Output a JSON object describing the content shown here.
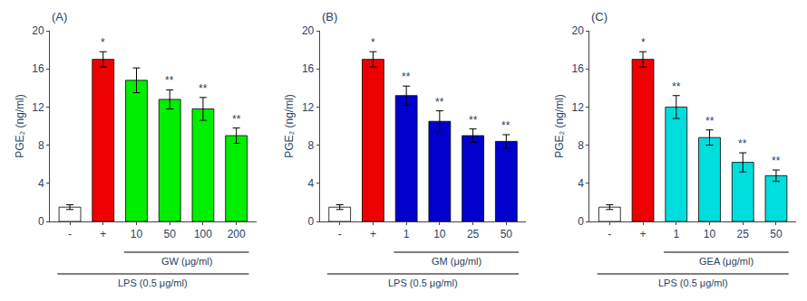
{
  "chart_data": [
    {
      "type": "bar",
      "title": "(A)",
      "ylabel": "PGE₂ (ng/ml)",
      "categories": [
        "-",
        "+",
        "10",
        "50",
        "100",
        "200"
      ],
      "values": [
        1.5,
        17.0,
        14.8,
        12.8,
        11.8,
        9.0
      ],
      "errors": [
        0.25,
        0.8,
        1.3,
        1.0,
        1.2,
        0.8
      ],
      "colors": [
        "#ffffff",
        "#ee0000",
        "#00ee00",
        "#00ee00",
        "#00ee00",
        "#00ee00"
      ],
      "significance": [
        null,
        "*",
        null,
        "**",
        "**",
        "**"
      ],
      "groups": [
        {
          "label": "GW (μg/ml)",
          "from": "10",
          "to": "200"
        },
        {
          "label": "LPS (0.5 μg/ml)",
          "from": "-",
          "to": "200"
        }
      ],
      "ylim": [
        0,
        20
      ],
      "yticks": [
        0,
        4,
        8,
        12,
        16,
        20
      ],
      "grid": false
    },
    {
      "type": "bar",
      "title": "(B)",
      "ylabel": "PGE₂ (ng/ml)",
      "categories": [
        "-",
        "+",
        "1",
        "10",
        "25",
        "50"
      ],
      "values": [
        1.5,
        17.0,
        13.2,
        10.5,
        9.0,
        8.4
      ],
      "errors": [
        0.25,
        0.8,
        1.0,
        1.1,
        0.7,
        0.7
      ],
      "colors": [
        "#ffffff",
        "#ee0000",
        "#0000cc",
        "#0000cc",
        "#0000cc",
        "#0000cc"
      ],
      "significance": [
        null,
        "*",
        "**",
        "**",
        "**",
        "**"
      ],
      "groups": [
        {
          "label": "GM (μg/ml)",
          "from": "1",
          "to": "50"
        },
        {
          "label": "LPS (0.5 μg/ml)",
          "from": "-",
          "to": "50"
        }
      ],
      "ylim": [
        0,
        20
      ],
      "yticks": [
        0,
        4,
        8,
        12,
        16,
        20
      ],
      "grid": false
    },
    {
      "type": "bar",
      "title": "(C)",
      "ylabel": "PGE₂ (ng/ml)",
      "categories": [
        "-",
        "+",
        "1",
        "10",
        "25",
        "50"
      ],
      "values": [
        1.5,
        17.0,
        12.0,
        8.8,
        6.2,
        4.8
      ],
      "errors": [
        0.25,
        0.8,
        1.2,
        0.8,
        1.0,
        0.6
      ],
      "colors": [
        "#ffffff",
        "#ee0000",
        "#00dddd",
        "#00dddd",
        "#00dddd",
        "#00dddd"
      ],
      "significance": [
        null,
        "*",
        "**",
        "**",
        "**",
        "**"
      ],
      "groups": [
        {
          "label": "GEA (μg/ml)",
          "from": "1",
          "to": "50"
        },
        {
          "label": "LPS (0.5 μg/ml)",
          "from": "-",
          "to": "50"
        }
      ],
      "ylim": [
        0,
        20
      ],
      "yticks": [
        0,
        4,
        8,
        12,
        16,
        20
      ],
      "grid": false
    }
  ]
}
